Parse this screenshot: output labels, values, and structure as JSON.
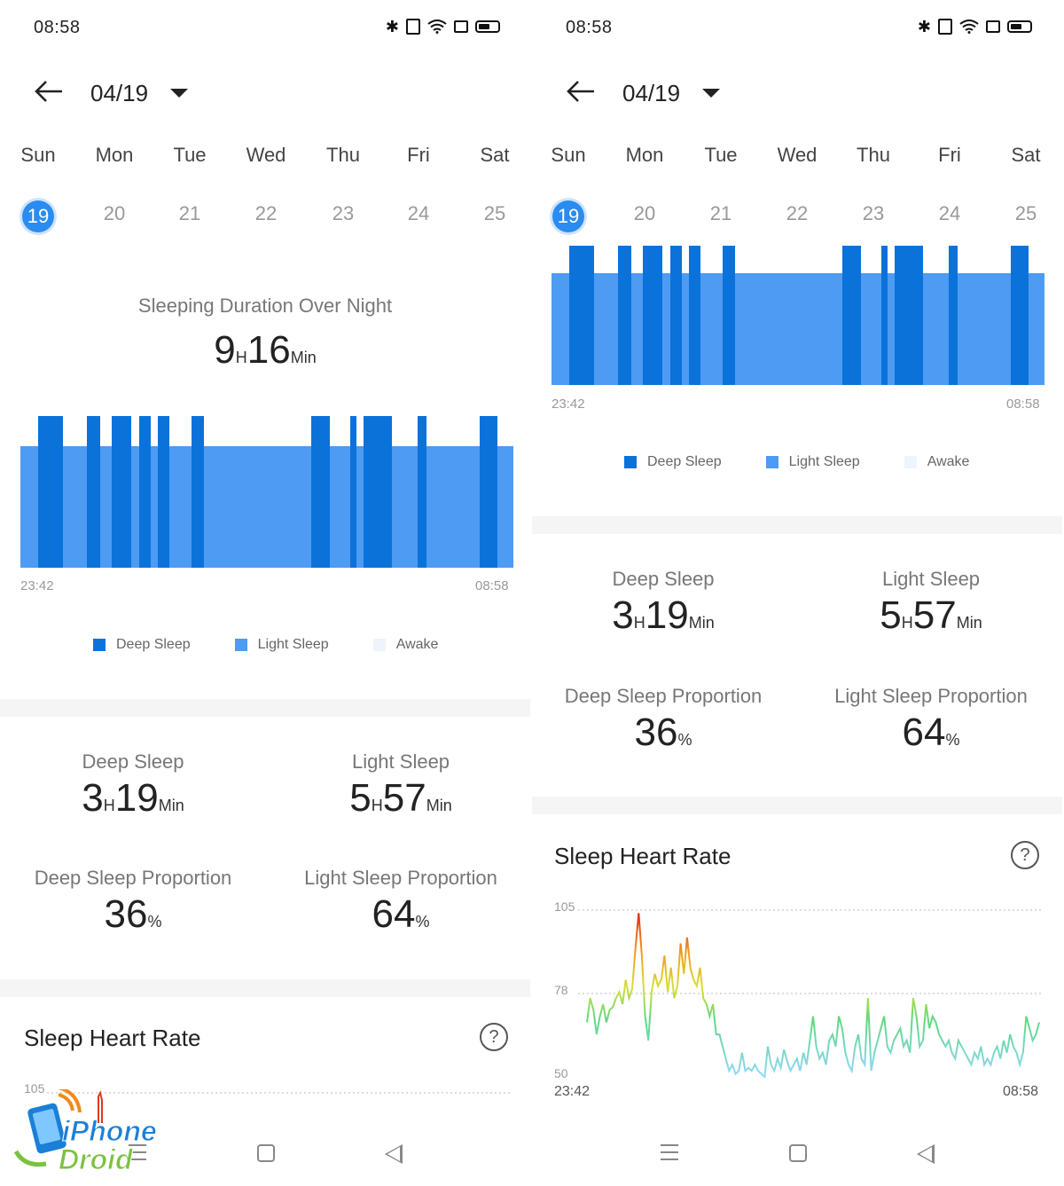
{
  "status": {
    "time": "08:58"
  },
  "header": {
    "date": "04/19"
  },
  "week": {
    "days": [
      {
        "name": "Sun",
        "num": "19"
      },
      {
        "name": "Mon",
        "num": "20"
      },
      {
        "name": "Tue",
        "num": "21"
      },
      {
        "name": "Wed",
        "num": "22"
      },
      {
        "name": "Thu",
        "num": "23"
      },
      {
        "name": "Fri",
        "num": "24"
      },
      {
        "name": "Sat",
        "num": "25"
      }
    ],
    "selected_index": 0
  },
  "summary": {
    "title": "Sleeping Duration Over Night",
    "hours": "9",
    "hours_unit": "H",
    "minutes": "16",
    "minutes_unit": "Min"
  },
  "sleep_chart": {
    "start_time": "23:42",
    "end_time": "08:58",
    "deep_color": "#0b72da",
    "light_color": "#4d9bf2",
    "awake_color": "#eef4fc"
  },
  "legend": {
    "deep": "Deep Sleep",
    "light": "Light Sleep",
    "awake": "Awake"
  },
  "stats": {
    "deep_label": "Deep Sleep",
    "deep_hours": "3",
    "deep_minutes": "19",
    "light_label": "Light Sleep",
    "light_hours": "5",
    "light_minutes": "57",
    "h_unit": "H",
    "min_unit": "Min",
    "deep_prop_label": "Deep Sleep Proportion",
    "deep_prop": "36",
    "light_prop_label": "Light Sleep Proportion",
    "light_prop": "64",
    "pct_unit": "%"
  },
  "heart_rate": {
    "title": "Sleep Heart Rate",
    "help": "?",
    "y_max": "105",
    "y_mid": "78",
    "y_min": "50",
    "start_time": "23:42",
    "end_time": "08:58"
  },
  "chart_data": {
    "type": "line",
    "title": "Sleep Heart Rate",
    "xlabel": "",
    "ylabel": "",
    "ylim": [
      50,
      105
    ],
    "yticks": [
      50,
      78,
      105
    ],
    "x_range": [
      "23:42",
      "08:58"
    ],
    "grid": true,
    "series": [
      {
        "values": [
          68,
          76,
          72,
          64,
          70,
          74,
          68,
          72,
          73,
          76,
          78,
          74,
          82,
          76,
          79,
          92,
          104,
          90,
          70,
          62,
          78,
          84,
          80,
          82,
          90,
          78,
          86,
          76,
          80,
          94,
          84,
          96,
          86,
          82,
          80,
          86,
          76,
          74,
          70,
          74,
          64,
          64,
          60,
          56,
          52,
          54,
          51,
          52,
          58,
          52,
          53,
          52,
          54,
          52,
          51,
          50,
          60,
          54,
          52,
          56,
          53,
          59,
          55,
          52,
          54,
          56,
          52,
          58,
          54,
          62,
          70,
          60,
          56,
          58,
          54,
          62,
          64,
          60,
          70,
          66,
          58,
          54,
          52,
          60,
          64,
          56,
          54,
          76,
          52,
          58,
          62,
          66,
          70,
          60,
          58,
          62,
          64,
          66,
          60,
          62,
          58,
          76,
          70,
          60,
          62,
          74,
          66,
          70,
          68,
          64,
          62,
          60,
          62,
          58,
          56,
          62,
          60,
          58,
          56,
          54,
          58,
          56,
          60,
          54,
          56,
          54,
          58,
          60,
          56,
          62,
          58,
          64,
          60,
          58,
          54,
          58,
          70,
          66,
          62,
          64,
          68
        ]
      }
    ]
  }
}
